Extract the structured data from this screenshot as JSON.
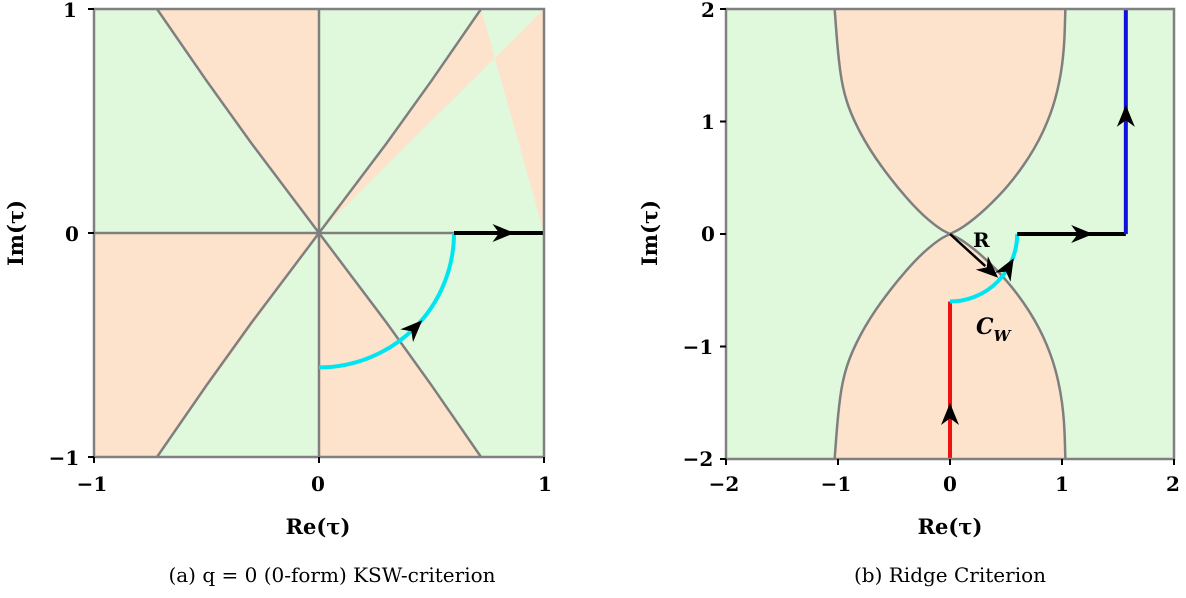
{
  "chart_data": [
    {
      "type": "region-plot",
      "panel_caption": "(a) q = 0 (0-form) KSW-criterion",
      "xlabel": "Re(τ)",
      "ylabel": "Im(τ)",
      "xlim": [
        -1,
        1
      ],
      "ylim": [
        -1,
        1
      ],
      "xticks": [
        "−1",
        "0",
        "1"
      ],
      "yticks": [
        "−1",
        "0",
        "1"
      ],
      "colors": {
        "region_a": "#fde3cc",
        "region_b": "#e0f8dc",
        "boundary": "#7f7f7f",
        "contour_arc": "#00e5f0",
        "contour_line": "#000000",
        "frame": "#808080"
      },
      "boundary_curves": [
        {
          "x": [
            -0.72,
            -0.5,
            -0.3,
            -0.12,
            0.0,
            0.12,
            0.3,
            0.5,
            0.72
          ],
          "y": [
            1.0,
            0.68,
            0.4,
            0.16,
            0.0,
            -0.16,
            -0.4,
            -0.68,
            -1.0
          ]
        },
        {
          "x": [
            -0.72,
            -0.5,
            -0.3,
            -0.12,
            0.0,
            0.12,
            0.3,
            0.5,
            0.72
          ],
          "y": [
            -1.0,
            -0.68,
            -0.4,
            -0.16,
            0.0,
            0.16,
            0.4,
            0.68,
            1.0
          ]
        },
        {
          "x": [
            0.0,
            0.0
          ],
          "y": [
            -1.0,
            1.0
          ]
        },
        {
          "x": [
            -1.0,
            1.0
          ],
          "y": [
            0.0,
            0.0
          ]
        }
      ],
      "contour": {
        "arc_center": [
          0,
          0
        ],
        "arc_radius": 0.6,
        "arc_from_deg": -90,
        "arc_to_deg": 0,
        "arc_arrow_deg": -45,
        "line": {
          "x": [
            0.6,
            1.04
          ],
          "y": [
            0,
            0
          ],
          "arrow_at": [
            0.82,
            0
          ]
        }
      }
    },
    {
      "type": "region-plot",
      "panel_caption": "(b)  Ridge Criterion",
      "xlabel": "Re(τ)",
      "ylabel": "Im(τ)",
      "xlim": [
        -2,
        2
      ],
      "ylim": [
        -2,
        2
      ],
      "xticks": [
        "−2",
        "−1",
        "0",
        "1",
        "2"
      ],
      "yticks": [
        "−2",
        "−1",
        "0",
        "1",
        "2"
      ],
      "colors": {
        "region_a": "#fde3cc",
        "region_b": "#e0f8dc",
        "boundary": "#7f7f7f",
        "contour_arc": "#00e5f0",
        "contour_line": "#000000",
        "red_line": "#ee1111",
        "blue_line": "#1111dd",
        "frame": "#808080"
      },
      "boundary_curves": [
        {
          "x": [
            -1.03,
            -1.0,
            -0.96,
            -0.88,
            -0.72,
            -0.5,
            -0.28,
            -0.1,
            0.0,
            0.12,
            0.32,
            0.55,
            0.76,
            0.9,
            0.98,
            1.02,
            1.03
          ],
          "y": [
            2.0,
            1.6,
            1.3,
            1.05,
            0.75,
            0.45,
            0.2,
            0.05,
            0.0,
            -0.06,
            -0.22,
            -0.46,
            -0.76,
            -1.06,
            -1.35,
            -1.65,
            -2.0
          ]
        },
        {
          "x": [
            -1.03,
            -1.0,
            -0.96,
            -0.88,
            -0.72,
            -0.5,
            -0.28,
            -0.1,
            0.0,
            0.12,
            0.32,
            0.55,
            0.76,
            0.9,
            0.98,
            1.02,
            1.03
          ],
          "y": [
            -2.0,
            -1.6,
            -1.3,
            -1.05,
            -0.75,
            -0.45,
            -0.2,
            -0.05,
            0.0,
            0.06,
            0.22,
            0.46,
            0.76,
            1.06,
            1.35,
            1.65,
            2.0
          ]
        }
      ],
      "contour": {
        "red_line": {
          "x": [
            0,
            0
          ],
          "y": [
            -2,
            -0.6
          ],
          "arrow_at": [
            0,
            -1.6
          ]
        },
        "arc_center": [
          0,
          0
        ],
        "arc_radius": 0.6,
        "arc_from_deg": -90,
        "arc_to_deg": 0,
        "arc_arrow_deg": -30,
        "black_line": {
          "x": [
            0.6,
            1.57
          ],
          "y": [
            0,
            0
          ],
          "arrow_at": [
            1.18,
            0
          ]
        },
        "blue_line": {
          "x": [
            1.57,
            1.57
          ],
          "y": [
            0,
            2
          ],
          "arrow_at": [
            1.57,
            1.05
          ]
        },
        "ray_R": {
          "x": [
            0,
            0.42
          ],
          "y": [
            0,
            -0.38
          ]
        }
      },
      "annotations": {
        "R": "R",
        "C": "C",
        "C_sub": "W"
      }
    }
  ]
}
